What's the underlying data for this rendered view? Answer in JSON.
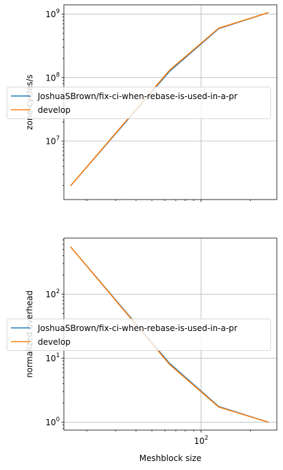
{
  "chart_data": [
    {
      "type": "line",
      "xscale": "log",
      "yscale": "log",
      "xlabel": "",
      "ylabel": "zone-cycles/s",
      "x": [
        16,
        64,
        128,
        256
      ],
      "ylim": [
        1200000,
        1400000000
      ],
      "yticks": [
        {
          "value": 10000000,
          "base": "10",
          "exp": "7"
        },
        {
          "value": 100000000,
          "base": "10",
          "exp": "8"
        },
        {
          "value": 1000000000,
          "base": "10",
          "exp": "9"
        }
      ],
      "grid": true,
      "legend": "center-left",
      "series": [
        {
          "name": "JoshuaSBrown/fix-ci-when-rebase-is-used-in-a-pr",
          "color": "#1f77b4",
          "values": [
            2000000,
            125000000,
            590000000,
            1050000000
          ]
        },
        {
          "name": "develop",
          "color": "#ff7f0e",
          "values": [
            2000000,
            130000000,
            600000000,
            1050000000
          ]
        }
      ]
    },
    {
      "type": "line",
      "xscale": "log",
      "yscale": "log",
      "xlabel": "Meshblock size",
      "ylabel": "normalized overhead",
      "x": [
        16,
        64,
        128,
        256
      ],
      "ylim": [
        0.75,
        750
      ],
      "yticks": [
        {
          "value": 1,
          "base": "10",
          "exp": "0"
        },
        {
          "value": 10,
          "base": "10",
          "exp": "1"
        },
        {
          "value": 100,
          "base": "10",
          "exp": "2"
        }
      ],
      "xticks": [
        {
          "value": 100,
          "base": "10",
          "exp": "2"
        }
      ],
      "grid": true,
      "legend": "center-left",
      "series": [
        {
          "name": "JoshuaSBrown/fix-ci-when-rebase-is-used-in-a-pr",
          "color": "#1f77b4",
          "values": [
            540,
            8.3,
            1.75,
            1.0
          ]
        },
        {
          "name": "develop",
          "color": "#ff7f0e",
          "values": [
            540,
            8.0,
            1.72,
            1.0
          ]
        }
      ]
    }
  ]
}
